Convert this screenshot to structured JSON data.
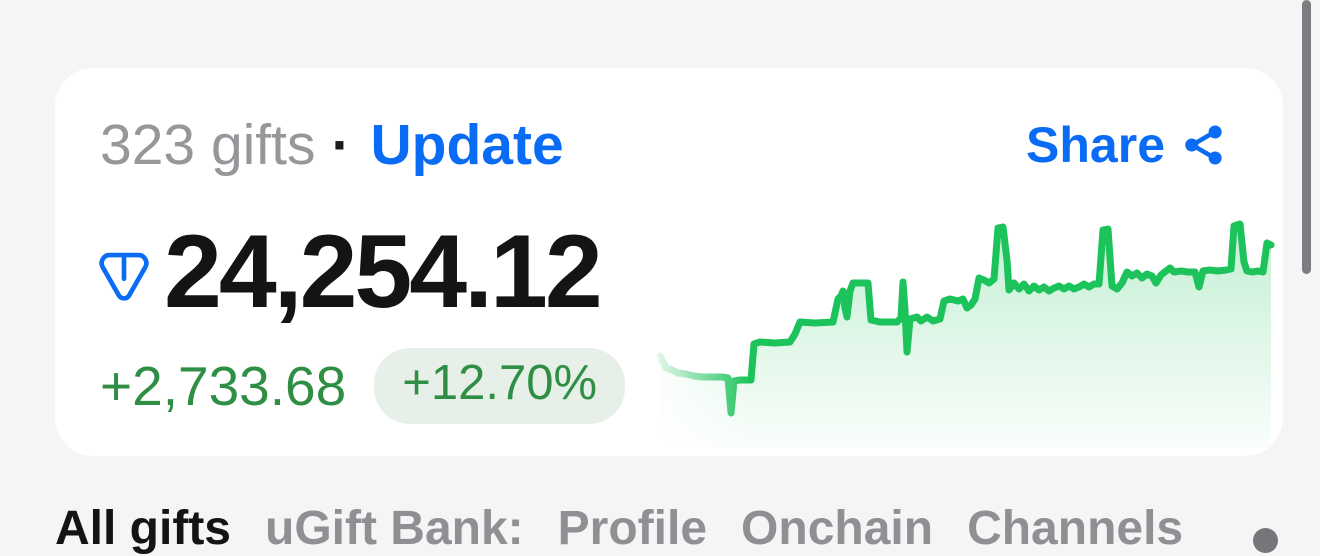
{
  "card": {
    "gift_count": "323 gifts",
    "separator": "·",
    "update_label": "Update",
    "share_label": "Share",
    "value": "24,254.12",
    "delta_value": "+2,733.68",
    "delta_percent": "+12.70%"
  },
  "colors": {
    "accent_blue": "#0a6cf5",
    "green_text": "#2e8f44",
    "pill_background": "#e7f0e8",
    "line_green": "#1cc25a",
    "page_background": "#f5f5f6",
    "muted_gray": "#96969b"
  },
  "icons": {
    "ton": "ton-diamond-icon",
    "share": "share-nodes-icon",
    "partial_bottom_right": "partial-circle-icon"
  },
  "tabs": {
    "items": [
      {
        "label": "All gifts",
        "active": true
      },
      {
        "label": "uGift Bank:",
        "active": false
      },
      {
        "label": "Profile",
        "active": false
      },
      {
        "label": "Onchain",
        "active": false
      },
      {
        "label": "Channels",
        "active": false
      }
    ]
  },
  "chart_data": {
    "type": "area",
    "title": "",
    "description": "Portfolio value sparkline trending up (+12.70%), stepped line with spikes",
    "legend": [],
    "grid": false,
    "line_color": "#1cc25a",
    "fill_top_color": "rgba(28,194,90,0.26)",
    "fill_bottom_color": "rgba(28,194,90,0.02)",
    "canvas": {
      "x_range": [
        655,
        1275
      ],
      "y_range": [
        215,
        448
      ],
      "baseline_y": 448
    },
    "points": [
      [
        660,
        356
      ],
      [
        663,
        362
      ],
      [
        666,
        368
      ],
      [
        672,
        370
      ],
      [
        678,
        373
      ],
      [
        686,
        374
      ],
      [
        694,
        376
      ],
      [
        702,
        377
      ],
      [
        712,
        377
      ],
      [
        722,
        377
      ],
      [
        728,
        378
      ],
      [
        731,
        413
      ],
      [
        734,
        381
      ],
      [
        740,
        380
      ],
      [
        751,
        380
      ],
      [
        754,
        344
      ],
      [
        760,
        342
      ],
      [
        775,
        343
      ],
      [
        790,
        342
      ],
      [
        795,
        334
      ],
      [
        800,
        322
      ],
      [
        815,
        323
      ],
      [
        833,
        322
      ],
      [
        838,
        299
      ],
      [
        841,
        296
      ],
      [
        843,
        291
      ],
      [
        845,
        308
      ],
      [
        847,
        317
      ],
      [
        850,
        291
      ],
      [
        853,
        283
      ],
      [
        868,
        283
      ],
      [
        871,
        320
      ],
      [
        880,
        322
      ],
      [
        897,
        322
      ],
      [
        901,
        318
      ],
      [
        903,
        282
      ],
      [
        905,
        310
      ],
      [
        907,
        352
      ],
      [
        910,
        319
      ],
      [
        917,
        317
      ],
      [
        921,
        321
      ],
      [
        927,
        317
      ],
      [
        933,
        321
      ],
      [
        940,
        319
      ],
      [
        944,
        301
      ],
      [
        950,
        299
      ],
      [
        958,
        301
      ],
      [
        963,
        299
      ],
      [
        967,
        308
      ],
      [
        971,
        305
      ],
      [
        975,
        299
      ],
      [
        979,
        278
      ],
      [
        984,
        280
      ],
      [
        989,
        283
      ],
      [
        994,
        279
      ],
      [
        998,
        228
      ],
      [
        1003,
        227
      ],
      [
        1007,
        260
      ],
      [
        1009,
        290
      ],
      [
        1014,
        283
      ],
      [
        1019,
        289
      ],
      [
        1024,
        284
      ],
      [
        1029,
        291
      ],
      [
        1034,
        286
      ],
      [
        1039,
        290
      ],
      [
        1044,
        287
      ],
      [
        1049,
        291
      ],
      [
        1054,
        288
      ],
      [
        1059,
        286
      ],
      [
        1064,
        289
      ],
      [
        1069,
        286
      ],
      [
        1074,
        289
      ],
      [
        1079,
        287
      ],
      [
        1084,
        284
      ],
      [
        1089,
        287
      ],
      [
        1094,
        284
      ],
      [
        1099,
        284
      ],
      [
        1103,
        230
      ],
      [
        1108,
        229
      ],
      [
        1112,
        286
      ],
      [
        1117,
        289
      ],
      [
        1122,
        283
      ],
      [
        1127,
        272
      ],
      [
        1132,
        276
      ],
      [
        1137,
        273
      ],
      [
        1142,
        278
      ],
      [
        1147,
        274
      ],
      [
        1152,
        276
      ],
      [
        1156,
        283
      ],
      [
        1161,
        275
      ],
      [
        1166,
        271
      ],
      [
        1170,
        268
      ],
      [
        1174,
        272
      ],
      [
        1181,
        271
      ],
      [
        1188,
        272
      ],
      [
        1195,
        272
      ],
      [
        1199,
        287
      ],
      [
        1203,
        271
      ],
      [
        1210,
        270
      ],
      [
        1218,
        271
      ],
      [
        1226,
        270
      ],
      [
        1231,
        269
      ],
      [
        1234,
        226
      ],
      [
        1240,
        224
      ],
      [
        1244,
        262
      ],
      [
        1247,
        271
      ],
      [
        1252,
        272
      ],
      [
        1258,
        271
      ],
      [
        1263,
        272
      ],
      [
        1267,
        243
      ],
      [
        1271,
        245
      ]
    ]
  }
}
